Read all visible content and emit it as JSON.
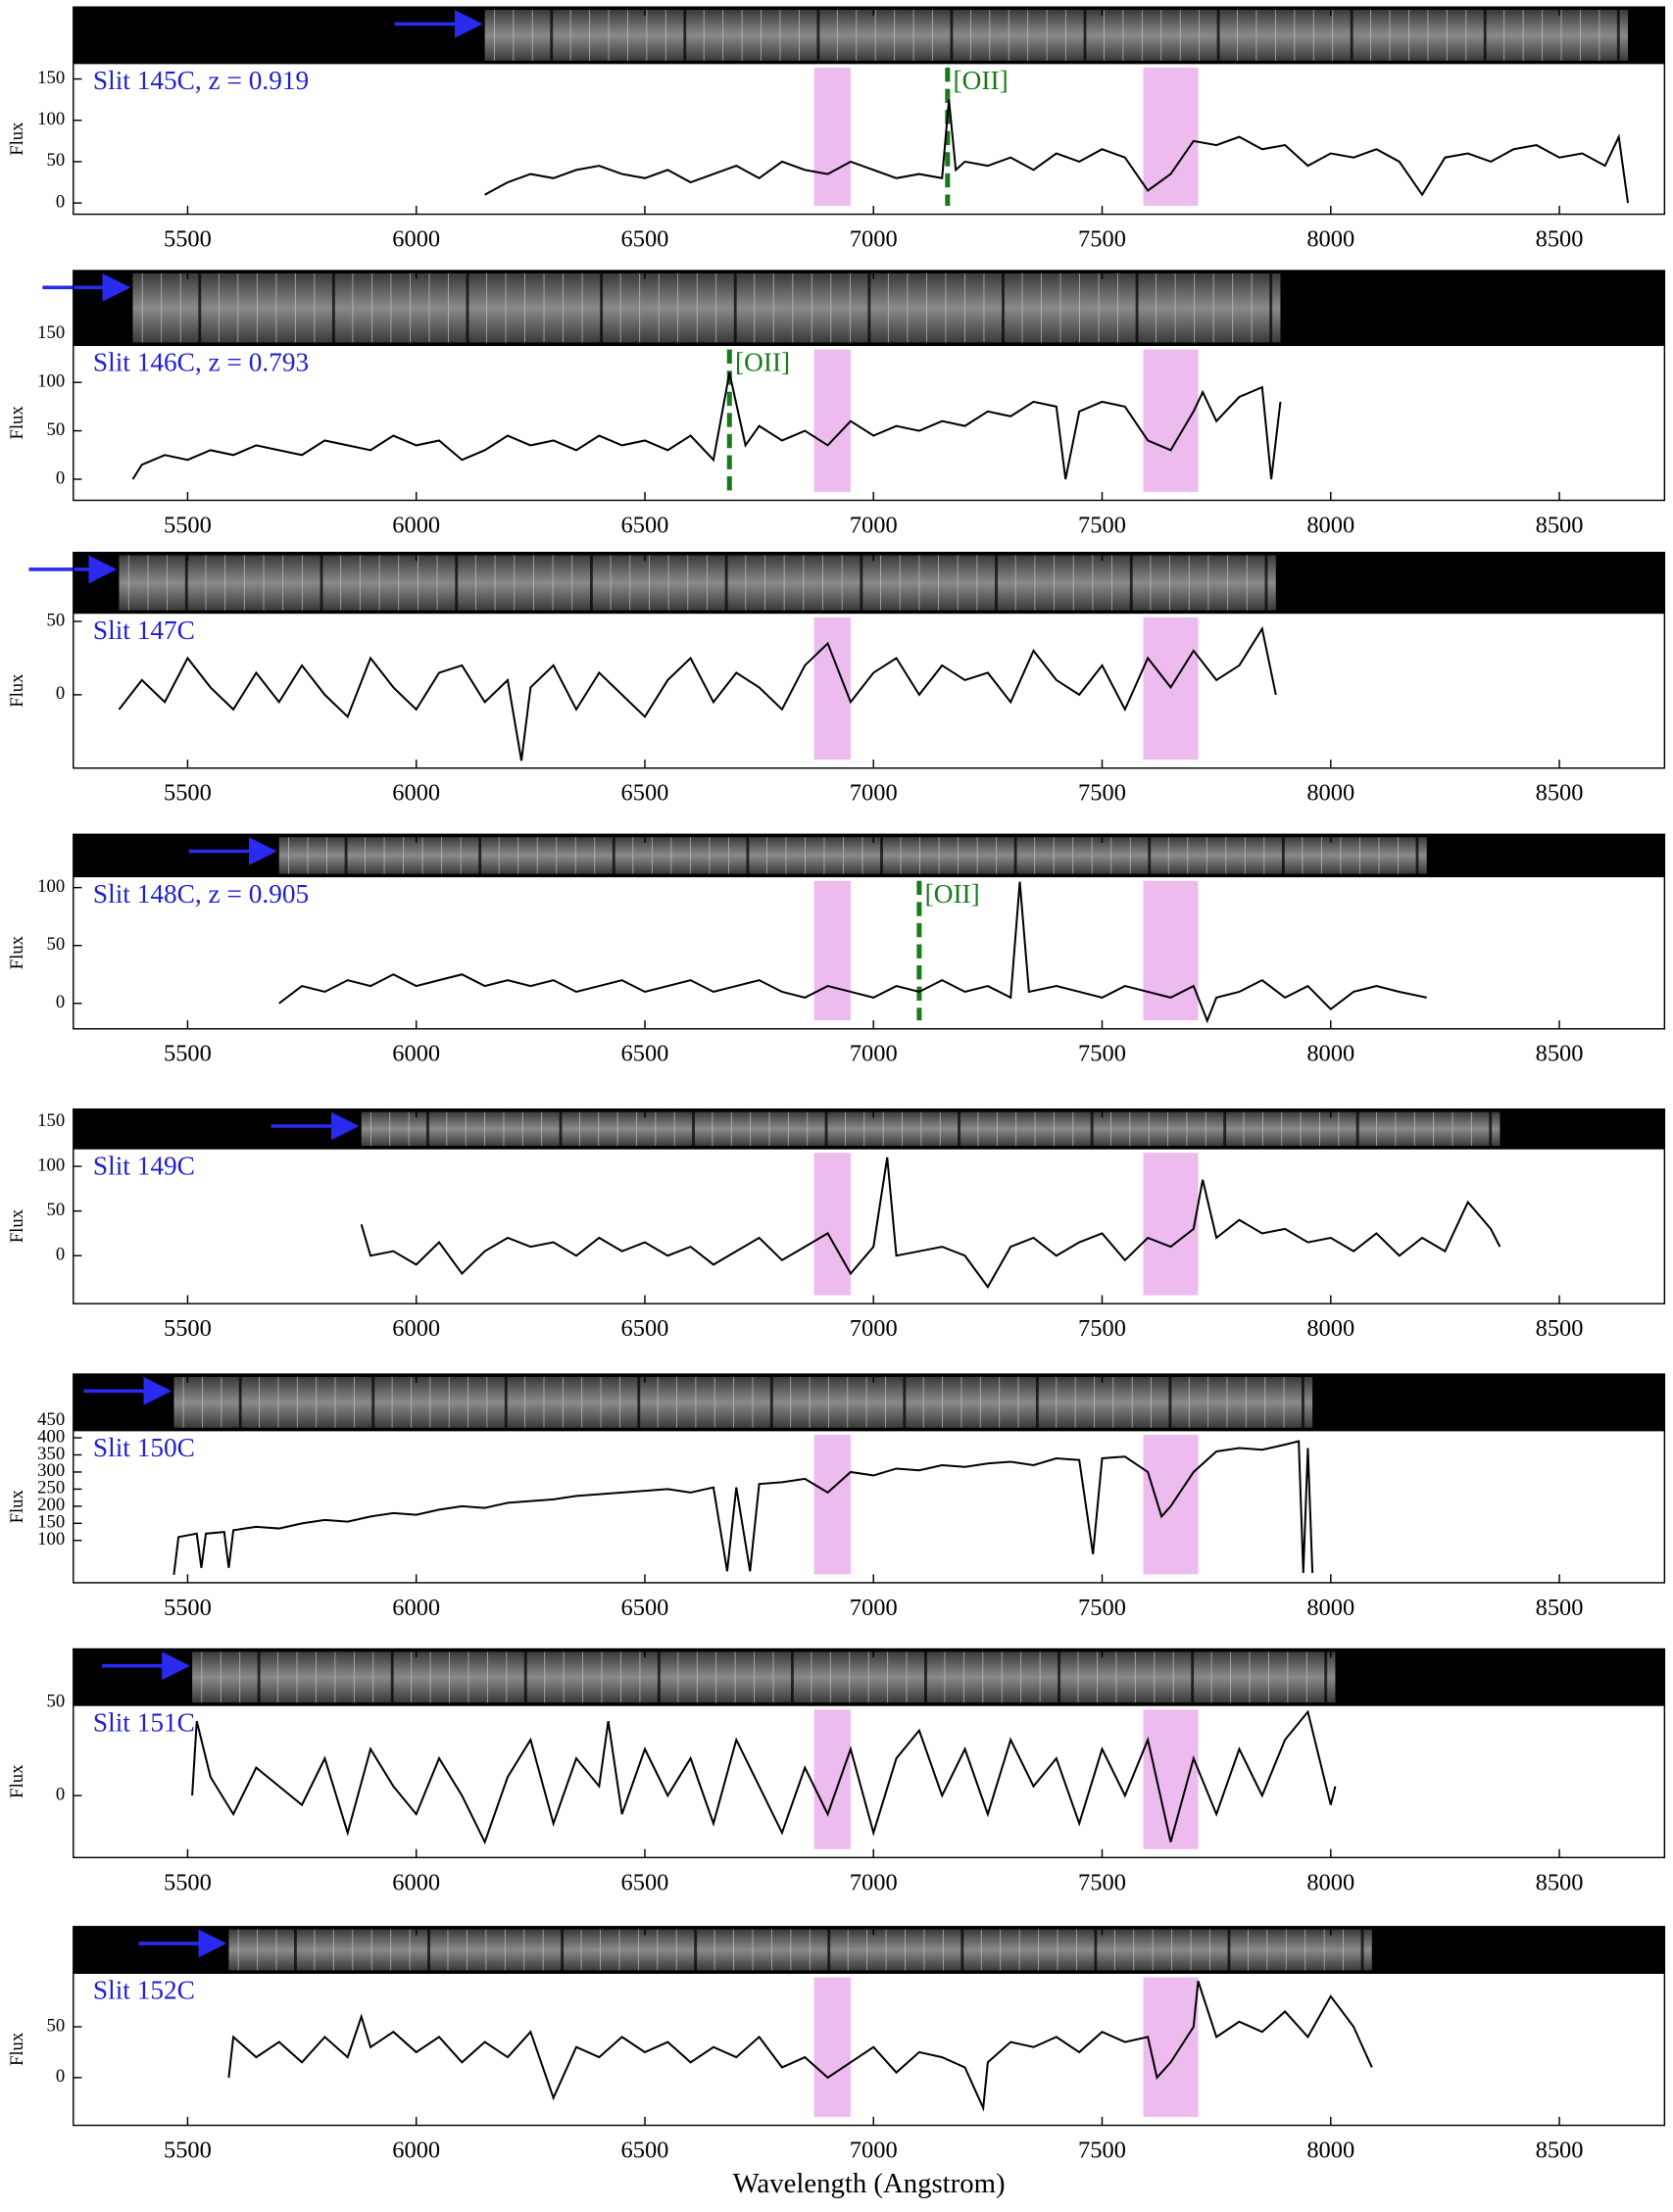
{
  "chart_data": [
    {
      "type": "line",
      "title": "Slit 145C, z = 0.919",
      "ylabel": "Flux",
      "xlim": [
        5250,
        8730
      ],
      "xticks": [
        5500,
        6000,
        6500,
        7000,
        7500,
        8000,
        8500
      ],
      "ylim": [
        -13.6,
        237
      ],
      "yticks": [
        0,
        50,
        100,
        150
      ],
      "bands": [
        [
          6870,
          6950
        ],
        [
          7590,
          7710
        ]
      ],
      "band_color": "#eebbee",
      "lines": [
        {
          "x": 7162,
          "label": "[OII]",
          "color": "#1a7a1a"
        }
      ],
      "x": [
        6150,
        6200,
        6250,
        6300,
        6350,
        6400,
        6450,
        6500,
        6550,
        6600,
        6650,
        6700,
        6750,
        6800,
        6850,
        6900,
        6950,
        7000,
        7050,
        7100,
        7150,
        7165,
        7180,
        7200,
        7250,
        7300,
        7350,
        7400,
        7450,
        7500,
        7550,
        7600,
        7650,
        7700,
        7750,
        7800,
        7850,
        7900,
        7950,
        8000,
        8050,
        8100,
        8150,
        8200,
        8250,
        8300,
        8350,
        8400,
        8450,
        8500,
        8550,
        8600,
        8630,
        8650
      ],
      "series": [
        {
          "color": "#000000",
          "values": [
            10,
            25,
            35,
            30,
            40,
            45,
            35,
            30,
            40,
            25,
            35,
            45,
            30,
            50,
            40,
            35,
            50,
            40,
            30,
            35,
            30,
            125,
            40,
            50,
            45,
            55,
            40,
            60,
            50,
            65,
            55,
            15,
            35,
            75,
            70,
            80,
            65,
            70,
            45,
            60,
            55,
            65,
            50,
            10,
            55,
            60,
            50,
            65,
            70,
            55,
            60,
            45,
            80,
            0
          ]
        }
      ]
    },
    {
      "type": "line",
      "title": "Slit 146C, z = 0.793",
      "ylabel": "Flux",
      "xlim": [
        5250,
        8730
      ],
      "xticks": [
        5500,
        6000,
        6500,
        7000,
        7500,
        8000,
        8500
      ],
      "ylim": [
        -21.8,
        215.5
      ],
      "yticks": [
        0,
        50,
        100,
        150
      ],
      "bands": [
        [
          6870,
          6950
        ],
        [
          7590,
          7710
        ]
      ],
      "band_color": "#eebbee",
      "lines": [
        {
          "x": 6685,
          "label": "[OII]",
          "color": "#1a7a1a"
        }
      ],
      "x": [
        5380,
        5400,
        5450,
        5500,
        5550,
        5600,
        5650,
        5700,
        5750,
        5800,
        5850,
        5900,
        5950,
        6000,
        6050,
        6100,
        6150,
        6200,
        6250,
        6300,
        6350,
        6400,
        6450,
        6500,
        6550,
        6600,
        6650,
        6685,
        6720,
        6750,
        6800,
        6850,
        6900,
        6950,
        7000,
        7050,
        7100,
        7150,
        7200,
        7250,
        7300,
        7350,
        7400,
        7420,
        7450,
        7500,
        7550,
        7600,
        7650,
        7700,
        7720,
        7750,
        7800,
        7850,
        7870,
        7890
      ],
      "series": [
        {
          "color": "#000000",
          "values": [
            0,
            15,
            25,
            20,
            30,
            25,
            35,
            30,
            25,
            40,
            35,
            30,
            45,
            35,
            40,
            20,
            30,
            45,
            35,
            40,
            30,
            45,
            35,
            40,
            30,
            45,
            20,
            110,
            35,
            55,
            40,
            50,
            35,
            60,
            45,
            55,
            50,
            60,
            55,
            70,
            65,
            80,
            75,
            0,
            70,
            80,
            75,
            40,
            30,
            70,
            90,
            60,
            85,
            95,
            0,
            80
          ]
        }
      ]
    },
    {
      "type": "line",
      "title": "Slit 147C",
      "ylabel": "Flux",
      "xlim": [
        5250,
        8730
      ],
      "xticks": [
        5500,
        6000,
        6500,
        7000,
        7500,
        8000,
        8500
      ],
      "ylim": [
        -50,
        97
      ],
      "yticks": [
        0,
        50
      ],
      "bands": [
        [
          6870,
          6950
        ],
        [
          7590,
          7710
        ]
      ],
      "band_color": "#eebbee",
      "x": [
        5350,
        5400,
        5450,
        5500,
        5550,
        5600,
        5650,
        5700,
        5750,
        5800,
        5850,
        5900,
        5950,
        6000,
        6050,
        6100,
        6150,
        6200,
        6230,
        6250,
        6300,
        6350,
        6400,
        6450,
        6500,
        6550,
        6600,
        6650,
        6700,
        6750,
        6800,
        6850,
        6900,
        6950,
        7000,
        7050,
        7100,
        7150,
        7200,
        7250,
        7300,
        7350,
        7400,
        7450,
        7500,
        7550,
        7600,
        7650,
        7700,
        7750,
        7800,
        7850,
        7880
      ],
      "series": [
        {
          "color": "#000000",
          "values": [
            -10,
            10,
            -5,
            25,
            5,
            -10,
            15,
            -5,
            20,
            0,
            -15,
            25,
            5,
            -10,
            15,
            20,
            -5,
            10,
            -45,
            5,
            20,
            -10,
            15,
            0,
            -15,
            10,
            25,
            -5,
            15,
            5,
            -10,
            20,
            35,
            -5,
            15,
            25,
            0,
            20,
            10,
            15,
            -5,
            30,
            10,
            0,
            20,
            -10,
            25,
            5,
            30,
            10,
            20,
            45,
            0
          ]
        }
      ]
    },
    {
      "type": "line",
      "title": "Slit 148C, z = 0.905",
      "ylabel": "Flux",
      "xlim": [
        5250,
        8730
      ],
      "xticks": [
        5500,
        6000,
        6500,
        7000,
        7500,
        8000,
        8500
      ],
      "ylim": [
        -22,
        146
      ],
      "yticks": [
        0,
        50,
        100
      ],
      "bands": [
        [
          6870,
          6950
        ],
        [
          7590,
          7710
        ]
      ],
      "band_color": "#eebbee",
      "lines": [
        {
          "x": 7100,
          "label": "[OII]",
          "color": "#1a7a1a"
        }
      ],
      "x": [
        5700,
        5750,
        5800,
        5850,
        5900,
        5950,
        6000,
        6050,
        6100,
        6150,
        6200,
        6250,
        6300,
        6350,
        6400,
        6450,
        6500,
        6550,
        6600,
        6650,
        6700,
        6750,
        6800,
        6850,
        6900,
        6950,
        7000,
        7050,
        7100,
        7150,
        7200,
        7250,
        7300,
        7320,
        7340,
        7400,
        7450,
        7500,
        7550,
        7600,
        7650,
        7700,
        7730,
        7750,
        7800,
        7850,
        7900,
        7950,
        8000,
        8050,
        8100,
        8150,
        8210
      ],
      "series": [
        {
          "color": "#000000",
          "values": [
            0,
            15,
            10,
            20,
            15,
            25,
            15,
            20,
            25,
            15,
            20,
            15,
            20,
            10,
            15,
            20,
            10,
            15,
            20,
            10,
            15,
            20,
            10,
            5,
            15,
            10,
            5,
            15,
            10,
            20,
            10,
            15,
            5,
            105,
            10,
            15,
            10,
            5,
            15,
            10,
            5,
            15,
            -15,
            5,
            10,
            20,
            5,
            15,
            -5,
            10,
            15,
            10,
            5
          ]
        }
      ]
    },
    {
      "type": "line",
      "title": "Slit 149C",
      "ylabel": "Flux",
      "xlim": [
        5250,
        8730
      ],
      "xticks": [
        5500,
        6000,
        6500,
        7000,
        7500,
        8000,
        8500
      ],
      "ylim": [
        -53.7,
        164
      ],
      "yticks": [
        0,
        50,
        100,
        150
      ],
      "bands": [
        [
          6870,
          6950
        ],
        [
          7590,
          7710
        ]
      ],
      "band_color": "#eebbee",
      "x": [
        5880,
        5900,
        5950,
        6000,
        6050,
        6100,
        6150,
        6200,
        6250,
        6300,
        6350,
        6400,
        6450,
        6500,
        6550,
        6600,
        6650,
        6700,
        6750,
        6800,
        6850,
        6900,
        6950,
        7000,
        7030,
        7050,
        7100,
        7150,
        7200,
        7250,
        7300,
        7350,
        7400,
        7450,
        7500,
        7550,
        7600,
        7650,
        7700,
        7720,
        7750,
        7800,
        7850,
        7900,
        7950,
        8000,
        8050,
        8100,
        8150,
        8200,
        8250,
        8300,
        8350,
        8370
      ],
      "series": [
        {
          "color": "#000000",
          "values": [
            35,
            0,
            5,
            -10,
            15,
            -20,
            5,
            20,
            10,
            15,
            0,
            20,
            5,
            15,
            0,
            10,
            -10,
            5,
            20,
            -5,
            10,
            25,
            -20,
            10,
            110,
            0,
            5,
            10,
            0,
            -35,
            10,
            20,
            0,
            15,
            25,
            -5,
            20,
            10,
            30,
            85,
            20,
            40,
            25,
            30,
            15,
            20,
            5,
            25,
            0,
            20,
            5,
            60,
            30,
            10
          ]
        }
      ]
    },
    {
      "type": "line",
      "title": "Slit 150C",
      "ylabel": "Flux",
      "xlim": [
        5250,
        8730
      ],
      "xticks": [
        5500,
        6000,
        6500,
        7000,
        7500,
        8000,
        8500
      ],
      "ylim": [
        -23.5,
        586
      ],
      "yticks": [
        100,
        150,
        200,
        250,
        300,
        350,
        400,
        450
      ],
      "bands": [
        [
          6870,
          6950
        ],
        [
          7590,
          7710
        ]
      ],
      "band_color": "#eebbee",
      "x": [
        5470,
        5480,
        5520,
        5530,
        5540,
        5580,
        5590,
        5600,
        5650,
        5700,
        5750,
        5800,
        5850,
        5900,
        5950,
        6000,
        6050,
        6100,
        6150,
        6200,
        6250,
        6300,
        6350,
        6400,
        6450,
        6500,
        6550,
        6600,
        6650,
        6680,
        6700,
        6730,
        6750,
        6800,
        6850,
        6900,
        6950,
        7000,
        7050,
        7100,
        7150,
        7200,
        7250,
        7300,
        7350,
        7400,
        7450,
        7480,
        7500,
        7550,
        7600,
        7630,
        7650,
        7700,
        7750,
        7800,
        7850,
        7900,
        7930,
        7940,
        7950,
        7960
      ],
      "series": [
        {
          "color": "#000000",
          "values": [
            0,
            110,
            120,
            20,
            120,
            125,
            20,
            130,
            140,
            135,
            150,
            160,
            155,
            170,
            180,
            175,
            190,
            200,
            195,
            210,
            215,
            220,
            230,
            235,
            240,
            245,
            250,
            240,
            255,
            10,
            255,
            10,
            265,
            270,
            280,
            240,
            300,
            290,
            310,
            305,
            320,
            315,
            325,
            330,
            320,
            340,
            335,
            60,
            340,
            345,
            300,
            170,
            200,
            300,
            360,
            370,
            365,
            380,
            390,
            5,
            370,
            5
          ]
        }
      ]
    },
    {
      "type": "line",
      "title": "Slit 151C",
      "ylabel": "Flux",
      "xlim": [
        5250,
        8730
      ],
      "xticks": [
        5500,
        6000,
        6500,
        7000,
        7500,
        8000,
        8500
      ],
      "ylim": [
        -33.3,
        78.8
      ],
      "yticks": [
        0,
        50
      ],
      "bands": [
        [
          6870,
          6950
        ],
        [
          7590,
          7710
        ]
      ],
      "band_color": "#eebbee",
      "x": [
        5510,
        5520,
        5550,
        5600,
        5650,
        5700,
        5750,
        5800,
        5850,
        5900,
        5950,
        6000,
        6050,
        6100,
        6150,
        6200,
        6250,
        6300,
        6350,
        6400,
        6420,
        6450,
        6500,
        6550,
        6600,
        6650,
        6700,
        6750,
        6800,
        6850,
        6900,
        6950,
        7000,
        7050,
        7100,
        7150,
        7200,
        7250,
        7300,
        7350,
        7400,
        7450,
        7500,
        7550,
        7600,
        7650,
        7700,
        7750,
        7800,
        7850,
        7900,
        7950,
        8000,
        8010
      ],
      "series": [
        {
          "color": "#000000",
          "values": [
            0,
            40,
            10,
            -10,
            15,
            5,
            -5,
            20,
            -20,
            25,
            5,
            -10,
            20,
            0,
            -25,
            10,
            30,
            -15,
            20,
            5,
            40,
            -10,
            25,
            0,
            20,
            -15,
            30,
            5,
            -20,
            15,
            -10,
            25,
            -20,
            20,
            35,
            0,
            25,
            -10,
            30,
            5,
            20,
            -15,
            25,
            0,
            30,
            -25,
            20,
            -10,
            25,
            0,
            30,
            45,
            -5,
            5
          ]
        }
      ]
    },
    {
      "type": "line",
      "title": "Slit 152C",
      "ylabel": "Flux",
      "xlabel": "Wavelength (Angstrom)",
      "xlim": [
        5250,
        8730
      ],
      "xticks": [
        5500,
        6000,
        6500,
        7000,
        7500,
        8000,
        8500
      ],
      "ylim": [
        -47,
        148.6
      ],
      "yticks": [
        0,
        50
      ],
      "bands": [
        [
          6870,
          6950
        ],
        [
          7590,
          7710
        ]
      ],
      "band_color": "#eebbee",
      "x": [
        5590,
        5600,
        5650,
        5700,
        5750,
        5800,
        5850,
        5880,
        5900,
        5950,
        6000,
        6050,
        6100,
        6150,
        6200,
        6250,
        6300,
        6350,
        6400,
        6450,
        6500,
        6550,
        6600,
        6650,
        6700,
        6750,
        6800,
        6850,
        6900,
        6950,
        7000,
        7050,
        7100,
        7150,
        7200,
        7240,
        7250,
        7300,
        7350,
        7400,
        7450,
        7500,
        7550,
        7600,
        7620,
        7650,
        7700,
        7710,
        7750,
        7800,
        7850,
        7900,
        7950,
        8000,
        8050,
        8090
      ],
      "series": [
        {
          "color": "#000000",
          "values": [
            0,
            40,
            20,
            35,
            15,
            40,
            20,
            60,
            30,
            45,
            25,
            40,
            15,
            35,
            20,
            45,
            -20,
            30,
            20,
            40,
            25,
            35,
            15,
            30,
            20,
            40,
            10,
            20,
            0,
            15,
            30,
            5,
            25,
            20,
            10,
            -30,
            15,
            35,
            30,
            40,
            25,
            45,
            35,
            40,
            0,
            15,
            50,
            95,
            40,
            55,
            45,
            65,
            40,
            80,
            50,
            10
          ]
        }
      ]
    }
  ]
}
